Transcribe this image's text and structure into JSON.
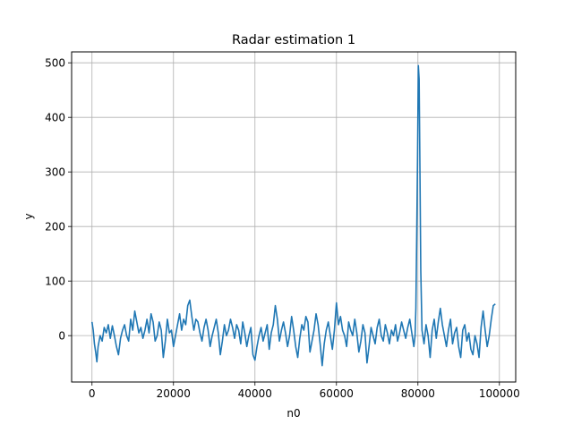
{
  "chart_data": {
    "type": "line",
    "title": "Radar estimation 1",
    "xlabel": "n0",
    "ylabel": "y",
    "xlim": [
      -5000,
      104000
    ],
    "ylim": [
      -85,
      520
    ],
    "grid": true,
    "color": "#1f77b4",
    "xticks": [
      0,
      20000,
      40000,
      60000,
      80000,
      100000
    ],
    "yticks": [
      0,
      100,
      200,
      300,
      400,
      500
    ],
    "xtick_labels": [
      "0",
      "20000",
      "40000",
      "60000",
      "80000",
      "100000"
    ],
    "ytick_labels": [
      "0",
      "100",
      "200",
      "300",
      "400",
      "500"
    ],
    "series": [
      {
        "x": [
          0,
          300,
          600,
          900,
          1200,
          1500,
          2000,
          2500,
          3000,
          3500,
          4000,
          4500,
          5000,
          5500,
          6000,
          6500,
          7000,
          7500,
          8000,
          8500,
          9000,
          9500,
          10000,
          10500,
          11000,
          11500,
          12000,
          12500,
          13000,
          13500,
          14000,
          14500,
          15000,
          15500,
          16000,
          16500,
          17000,
          17500,
          18000,
          18500,
          19000,
          19500,
          20000,
          20500,
          21000,
          21500,
          22000,
          22500,
          23000,
          23500,
          24000,
          24500,
          25000,
          25500,
          26000,
          26500,
          27000,
          27500,
          28000,
          28500,
          29000,
          29500,
          30000,
          30500,
          31000,
          31500,
          32000,
          32500,
          33000,
          33500,
          34000,
          34500,
          35000,
          35500,
          36000,
          36500,
          37000,
          37500,
          38000,
          38500,
          39000,
          39500,
          40000,
          40500,
          41000,
          41500,
          42000,
          42500,
          43000,
          43500,
          44000,
          44500,
          45000,
          45500,
          46000,
          46500,
          47000,
          47500,
          48000,
          48500,
          49000,
          49500,
          50000,
          50500,
          51000,
          51500,
          52000,
          52500,
          53000,
          53500,
          54000,
          54500,
          55000,
          55500,
          56000,
          56500,
          57000,
          57500,
          58000,
          58500,
          59000,
          59500,
          60000,
          60500,
          61000,
          61500,
          62000,
          62500,
          63000,
          63500,
          64000,
          64500,
          65000,
          65500,
          66000,
          66500,
          67000,
          67500,
          68000,
          68500,
          69000,
          69500,
          70000,
          70500,
          71000,
          71500,
          72000,
          72500,
          73000,
          73500,
          74000,
          74500,
          75000,
          75500,
          76000,
          76500,
          77000,
          77500,
          78000,
          78500,
          79000,
          79300,
          79500,
          79700,
          79900,
          80100,
          80300,
          80500,
          80700,
          81000,
          81500,
          82000,
          82500,
          83000,
          83500,
          84000,
          84500,
          85000,
          85500,
          86000,
          86500,
          87000,
          87500,
          88000,
          88500,
          89000,
          89500,
          90000,
          90500,
          91000,
          91500,
          92000,
          92500,
          93000,
          93500,
          94000,
          94500,
          95000,
          95500,
          96000,
          96500,
          97000,
          97500,
          98000,
          98500,
          99000
        ],
        "y": [
          25,
          10,
          -15,
          -30,
          -48,
          -20,
          0,
          -10,
          15,
          5,
          20,
          -5,
          18,
          0,
          -20,
          -35,
          -5,
          10,
          20,
          0,
          -10,
          30,
          10,
          45,
          25,
          5,
          15,
          -5,
          10,
          30,
          5,
          40,
          25,
          -10,
          0,
          25,
          10,
          -40,
          -10,
          30,
          5,
          10,
          -20,
          0,
          20,
          40,
          10,
          30,
          20,
          55,
          65,
          35,
          10,
          30,
          25,
          5,
          -10,
          15,
          30,
          10,
          -20,
          0,
          15,
          30,
          5,
          -35,
          -10,
          20,
          0,
          10,
          30,
          15,
          -5,
          20,
          10,
          -15,
          25,
          5,
          -20,
          0,
          15,
          -35,
          -45,
          -20,
          0,
          15,
          -10,
          5,
          20,
          -25,
          5,
          20,
          55,
          30,
          -10,
          10,
          25,
          5,
          -20,
          0,
          35,
          10,
          -20,
          -40,
          -5,
          20,
          10,
          35,
          25,
          -30,
          -10,
          10,
          40,
          20,
          -15,
          -55,
          -15,
          10,
          25,
          0,
          -25,
          10,
          60,
          20,
          35,
          10,
          0,
          -20,
          25,
          10,
          0,
          30,
          5,
          -30,
          -10,
          20,
          5,
          -50,
          -20,
          15,
          0,
          -15,
          15,
          30,
          0,
          -10,
          20,
          5,
          -15,
          10,
          0,
          20,
          -10,
          5,
          25,
          10,
          -5,
          15,
          30,
          5,
          -20,
          0,
          50,
          180,
          320,
          495,
          470,
          300,
          120,
          10,
          -15,
          20,
          0,
          -40,
          10,
          30,
          -5,
          25,
          50,
          20,
          0,
          -20,
          10,
          30,
          -15,
          5,
          15,
          -20,
          -40,
          10,
          20,
          -10,
          5,
          -25,
          -35,
          0,
          -15,
          -40,
          15,
          45,
          10,
          -20,
          0,
          30,
          55,
          58
        ]
      }
    ]
  }
}
